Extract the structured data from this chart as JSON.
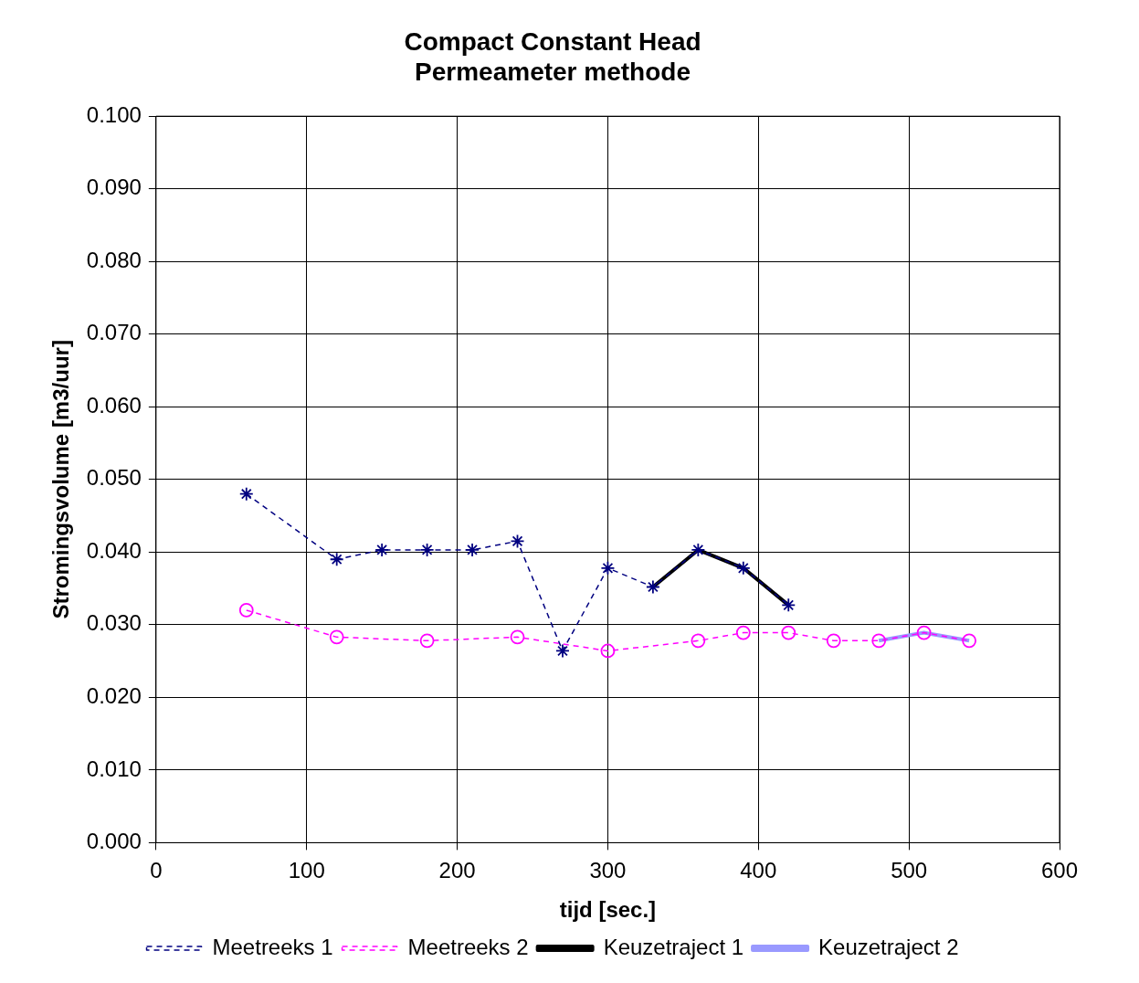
{
  "chart_data": {
    "type": "line",
    "title": "Compact Constant Head\nPermeameter methode",
    "xlabel": "tijd [sec.]",
    "ylabel": "Stromingsvolume [m3/uur]",
    "xlim": [
      0,
      600
    ],
    "xticks": [
      0,
      100,
      200,
      300,
      400,
      500,
      600
    ],
    "ylim": [
      0,
      0.1
    ],
    "yticks": [
      {
        "value": 0,
        "label": "0.000"
      },
      {
        "value": 0.01,
        "label": "0.010"
      },
      {
        "value": 0.02,
        "label": "0.020"
      },
      {
        "value": 0.03,
        "label": "0.030"
      },
      {
        "value": 0.04,
        "label": "0.040"
      },
      {
        "value": 0.05,
        "label": "0.050"
      },
      {
        "value": 0.06,
        "label": "0.060"
      },
      {
        "value": 0.07,
        "label": "0.070"
      },
      {
        "value": 0.08,
        "label": "0.080"
      },
      {
        "value": 0.09,
        "label": "0.090"
      },
      {
        "value": 0.1,
        "label": "0.100"
      }
    ],
    "grid": true,
    "legend": "bottom",
    "series": [
      {
        "name": "Meetreeks 1",
        "color": "#000080",
        "marker": "cross",
        "line_style": "dashed",
        "x": [
          60,
          120,
          150,
          180,
          210,
          240,
          270,
          300,
          330,
          360,
          390,
          420
        ],
        "values": [
          0.048,
          0.039,
          0.0403,
          0.0403,
          0.0403,
          0.0415,
          0.0264,
          0.0378,
          0.0352,
          0.0403,
          0.0378,
          0.0327
        ]
      },
      {
        "name": "Meetreeks 2",
        "color": "#ff00ff",
        "marker": "circle",
        "line_style": "dashed",
        "x": [
          60,
          120,
          180,
          240,
          300,
          360,
          390,
          420,
          450,
          480,
          510,
          540
        ],
        "values": [
          0.032,
          0.0283,
          0.0278,
          0.0283,
          0.0264,
          0.0278,
          0.0289,
          0.0289,
          0.0278,
          0.0278,
          0.0289,
          0.0278
        ]
      },
      {
        "name": "Keuzetraject 1",
        "color": "#000000",
        "marker": "none",
        "line_style": "solid",
        "x": [
          330,
          360,
          390,
          420
        ],
        "values": [
          0.0352,
          0.0403,
          0.0378,
          0.0327
        ]
      },
      {
        "name": "Keuzetraject 2",
        "color": "#9999ff",
        "marker": "none",
        "line_style": "solid",
        "x": [
          480,
          510,
          540
        ],
        "values": [
          0.0278,
          0.0289,
          0.0278
        ]
      }
    ]
  }
}
